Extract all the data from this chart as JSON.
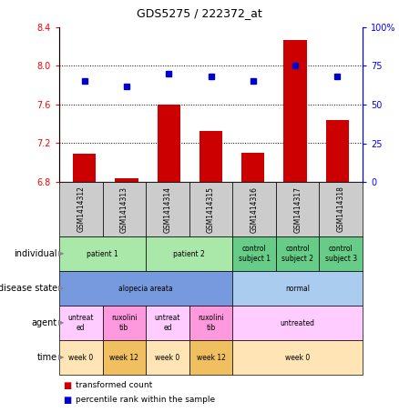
{
  "title": "GDS5275 / 222372_at",
  "samples": [
    "GSM1414312",
    "GSM1414313",
    "GSM1414314",
    "GSM1414315",
    "GSM1414316",
    "GSM1414317",
    "GSM1414318"
  ],
  "bar_values": [
    7.09,
    6.84,
    7.6,
    7.33,
    7.1,
    8.27,
    7.44
  ],
  "dot_values": [
    65,
    62,
    70,
    68,
    65,
    75,
    68
  ],
  "ylim_left": [
    6.8,
    8.4
  ],
  "ylim_right": [
    0,
    100
  ],
  "yticks_left": [
    6.8,
    7.2,
    7.6,
    8.0,
    8.4
  ],
  "yticks_right": [
    0,
    25,
    50,
    75,
    100
  ],
  "bar_color": "#cc0000",
  "dot_color": "#0000cc",
  "bar_bottom": 6.8,
  "annotation_rows": [
    {
      "label": "individual",
      "cells": [
        {
          "text": "patient 1",
          "span": 2,
          "color": "#aae8aa"
        },
        {
          "text": "patient 2",
          "span": 2,
          "color": "#aae8aa"
        },
        {
          "text": "control\nsubject 1",
          "span": 1,
          "color": "#66cc88"
        },
        {
          "text": "control\nsubject 2",
          "span": 1,
          "color": "#66cc88"
        },
        {
          "text": "control\nsubject 3",
          "span": 1,
          "color": "#66cc88"
        }
      ]
    },
    {
      "label": "disease state",
      "cells": [
        {
          "text": "alopecia areata",
          "span": 4,
          "color": "#7799dd"
        },
        {
          "text": "normal",
          "span": 3,
          "color": "#aaccee"
        }
      ]
    },
    {
      "label": "agent",
      "cells": [
        {
          "text": "untreat\ned",
          "span": 1,
          "color": "#ffccff"
        },
        {
          "text": "ruxolini\ntib",
          "span": 1,
          "color": "#ff99dd"
        },
        {
          "text": "untreat\ned",
          "span": 1,
          "color": "#ffccff"
        },
        {
          "text": "ruxolini\ntib",
          "span": 1,
          "color": "#ff99dd"
        },
        {
          "text": "untreated",
          "span": 3,
          "color": "#ffccff"
        }
      ]
    },
    {
      "label": "time",
      "cells": [
        {
          "text": "week 0",
          "span": 1,
          "color": "#ffe4b5"
        },
        {
          "text": "week 12",
          "span": 1,
          "color": "#f0c060"
        },
        {
          "text": "week 0",
          "span": 1,
          "color": "#ffe4b5"
        },
        {
          "text": "week 12",
          "span": 1,
          "color": "#f0c060"
        },
        {
          "text": "week 0",
          "span": 3,
          "color": "#ffe4b5"
        }
      ]
    }
  ],
  "legend": [
    {
      "color": "#cc0000",
      "label": "transformed count"
    },
    {
      "color": "#0000cc",
      "label": "percentile rank within the sample"
    }
  ],
  "sample_col_bg": "#cccccc",
  "fig_width": 4.38,
  "fig_height": 4.53,
  "dpi": 100
}
